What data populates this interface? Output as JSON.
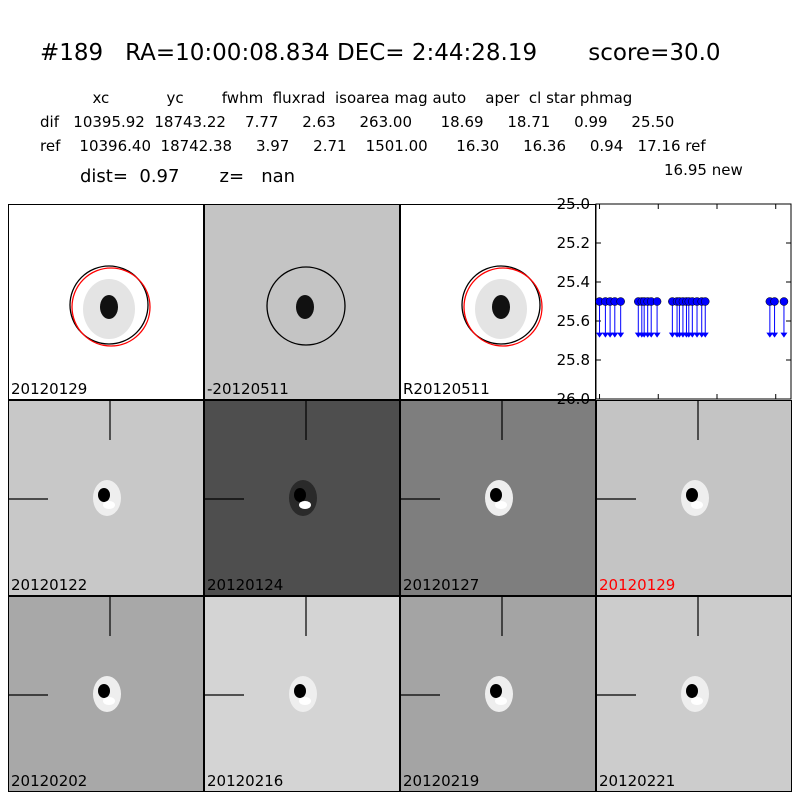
{
  "header": {
    "title": "#189   RA=10:00:08.834 DEC= 2:44:28.19       score=30.0",
    "columns": "           xc            yc        fwhm  fluxrad  isoarea mag auto    aper  cl star phmag",
    "dif_row": "dif   10395.92  18743.22    7.77     2.63     263.00      18.69     18.71     0.99     25.50",
    "ref_row": "ref    10396.40  18742.38     3.97     2.71    1501.00      16.30     16.36     0.94   17.16 ref",
    "dist_row": "dist=  0.97       z=   nan",
    "new_row": "16.95 new"
  },
  "panels": [
    {
      "label": "20120129",
      "bg": "#ffffff",
      "type": "circles",
      "red": false
    },
    {
      "label": "-20120511",
      "bg": "#c4c4c4",
      "type": "circle",
      "red": false
    },
    {
      "label": "R20120511",
      "bg": "#ffffff",
      "type": "circles",
      "red": false
    },
    {
      "label": "20120122",
      "bg": "#c8c8c8",
      "type": "cross",
      "red": false
    },
    {
      "label": "20120124",
      "bg": "#4e4e4e",
      "type": "cross",
      "red": false
    },
    {
      "label": "20120127",
      "bg": "#7e7e7e",
      "type": "cross",
      "red": false
    },
    {
      "label": "20120129",
      "bg": "#c4c4c4",
      "type": "cross",
      "red": true
    },
    {
      "label": "20120202",
      "bg": "#a8a8a8",
      "type": "cross",
      "red": false
    },
    {
      "label": "20120216",
      "bg": "#d4d4d4",
      "type": "cross",
      "red": false
    },
    {
      "label": "20120219",
      "bg": "#a4a4a4",
      "type": "cross",
      "red": false
    },
    {
      "label": "20120221",
      "bg": "#cccccc",
      "type": "cross",
      "red": false
    }
  ],
  "chart_data": {
    "type": "scatter",
    "title": "",
    "xlabel": "",
    "ylabel": "",
    "xlim": [
      -3,
      163
    ],
    "ylim": [
      26.0,
      25.0
    ],
    "y_inverted": true,
    "x_ticks": [
      "0",
      "50",
      "100",
      "150"
    ],
    "y_ticks": [
      "25.0",
      "25.2",
      "25.4",
      "25.6",
      "25.8",
      "26.0"
    ],
    "marker_color": "#0000ff",
    "points_y": 25.5,
    "upper_limit_arrow_to": 25.68,
    "x": [
      0,
      5,
      9,
      13,
      18,
      33,
      36,
      38,
      41,
      44,
      49,
      62,
      66,
      68,
      71,
      74,
      76,
      79,
      83,
      87,
      90,
      145,
      149,
      157
    ]
  }
}
